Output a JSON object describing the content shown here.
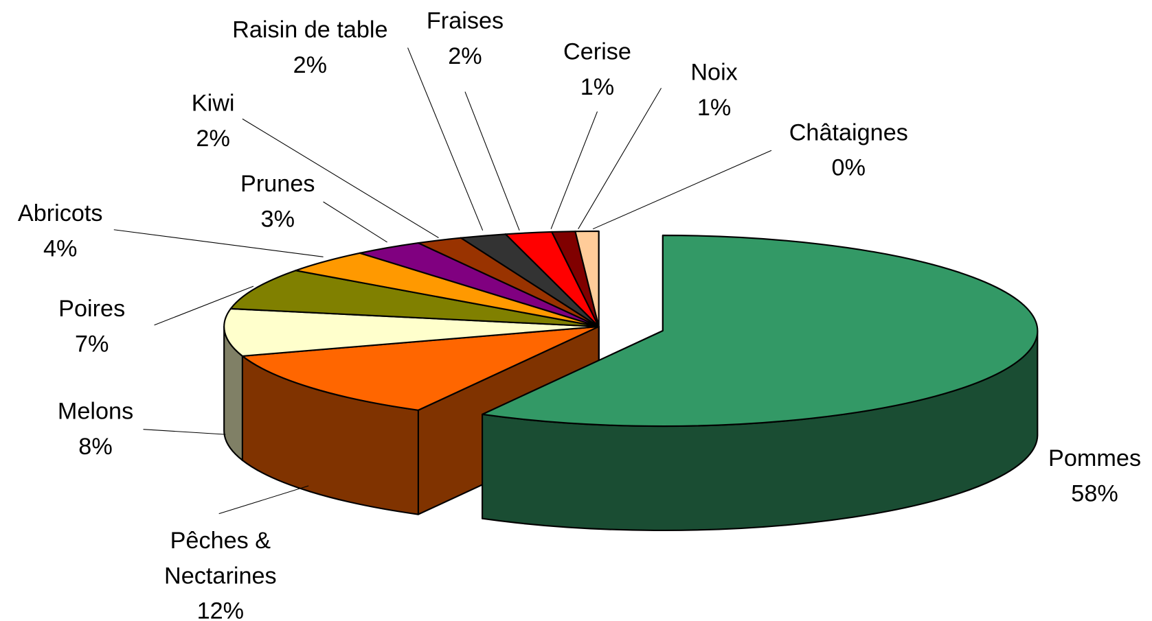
{
  "chart_data": {
    "type": "pie",
    "categories": [
      "Pommes",
      "Pêches & Nectarines",
      "Melons",
      "Poires",
      "Abricots",
      "Prunes",
      "Kiwi",
      "Raisin de table",
      "Fraises",
      "Cerise",
      "Noix",
      "Châtaignes"
    ],
    "values": [
      58,
      12,
      8,
      7,
      4,
      3,
      2,
      2,
      2,
      1,
      1,
      0
    ],
    "value_labels": [
      "58%",
      "12%",
      "8%",
      "7%",
      "4%",
      "3%",
      "2%",
      "2%",
      "2%",
      "1%",
      "1%",
      "0%"
    ],
    "colors": [
      "#339966",
      "#ff6600",
      "#ffffcc",
      "#808000",
      "#ff9900",
      "#800080",
      "#993300",
      "#333333",
      "#ff0000",
      "#800000",
      "#ffcc99",
      "#990000"
    ]
  }
}
